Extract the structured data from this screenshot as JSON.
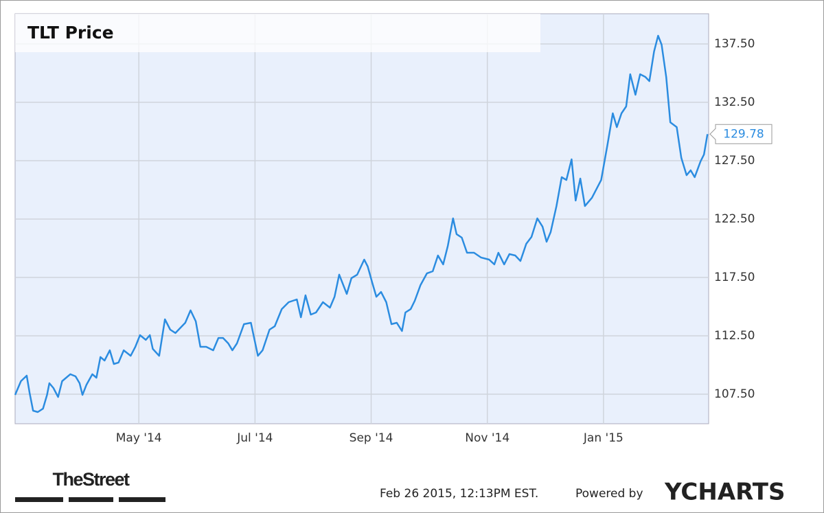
{
  "chart_data": {
    "type": "line",
    "title": "TLT Price",
    "color": "#2b8ce0",
    "grid": true,
    "x": [
      1.87,
      1.97,
      2.07,
      2.12,
      2.18,
      2.26,
      2.35,
      2.42,
      2.46,
      2.53,
      2.61,
      2.68,
      2.75,
      2.82,
      2.91,
      2.98,
      3.03,
      3.1,
      3.2,
      3.27,
      3.34,
      3.41,
      3.5,
      3.57,
      3.65,
      3.74,
      3.86,
      3.94,
      4.02,
      4.12,
      4.19,
      4.24,
      4.35,
      4.45,
      4.54,
      4.63,
      4.71,
      4.8,
      4.89,
      4.98,
      5.06,
      5.16,
      5.28,
      5.37,
      5.45,
      5.54,
      5.61,
      5.69,
      5.81,
      5.93,
      6.05,
      6.13,
      6.25,
      6.34,
      6.46,
      6.58,
      6.72,
      6.79,
      6.87,
      6.96,
      7.05,
      7.17,
      7.29,
      7.37,
      7.45,
      7.58,
      7.66,
      7.76,
      7.88,
      7.94,
      8.02,
      8.09,
      8.17,
      8.26,
      8.35,
      8.44,
      8.53,
      8.59,
      8.68,
      8.75,
      8.85,
      8.96,
      9.06,
      9.15,
      9.24,
      9.32,
      9.41,
      9.47,
      9.56,
      9.65,
      9.77,
      9.89,
      10.03,
      10.12,
      10.19,
      10.29,
      10.38,
      10.48,
      10.57,
      10.67,
      10.76,
      10.86,
      10.95,
      11.02,
      11.09,
      11.19,
      11.28,
      11.36,
      11.45,
      11.52,
      11.6,
      11.68,
      11.8,
      11.96,
      12.07,
      12.16,
      12.23,
      12.31,
      12.39,
      12.46,
      12.55,
      12.63,
      12.72,
      12.79,
      12.87,
      12.94,
      13.0,
      13.08,
      13.15,
      13.26,
      13.34,
      13.43,
      13.5,
      13.57,
      13.67,
      13.73,
      13.79
    ],
    "values": [
      107.44,
      108.62,
      109.09,
      107.62,
      106.09,
      105.97,
      106.26,
      107.44,
      108.44,
      108.03,
      107.26,
      108.62,
      108.91,
      109.21,
      109.03,
      108.44,
      107.44,
      108.32,
      109.21,
      108.91,
      110.68,
      110.38,
      111.26,
      110.09,
      110.21,
      111.26,
      110.79,
      111.56,
      112.56,
      112.15,
      112.56,
      111.38,
      110.79,
      113.91,
      113.03,
      112.74,
      113.15,
      113.62,
      114.68,
      113.74,
      111.56,
      111.56,
      111.26,
      112.32,
      112.32,
      111.85,
      111.26,
      111.85,
      113.5,
      113.62,
      110.79,
      111.26,
      113.03,
      113.32,
      114.79,
      115.38,
      115.62,
      114.09,
      115.97,
      114.32,
      114.5,
      115.38,
      114.91,
      115.85,
      117.74,
      116.09,
      117.44,
      117.74,
      119.03,
      118.44,
      117.03,
      115.85,
      116.26,
      115.38,
      113.5,
      113.62,
      112.91,
      114.5,
      114.79,
      115.5,
      116.85,
      117.85,
      118.03,
      119.38,
      118.62,
      120.21,
      122.56,
      121.21,
      120.91,
      119.62,
      119.62,
      119.21,
      119.03,
      118.62,
      119.62,
      118.62,
      119.5,
      119.38,
      118.91,
      120.38,
      120.97,
      122.56,
      121.85,
      120.56,
      121.38,
      123.62,
      126.09,
      125.85,
      127.62,
      124.09,
      125.97,
      123.62,
      124.32,
      125.85,
      128.91,
      131.56,
      130.38,
      131.56,
      132.15,
      134.91,
      133.15,
      134.91,
      134.68,
      134.32,
      136.85,
      138.21,
      137.44,
      134.68,
      130.79,
      130.38,
      127.74,
      126.26,
      126.68,
      126.09,
      127.44,
      128.03,
      129.78
    ],
    "xlim": [
      1.87,
      13.81
    ],
    "xticks": [
      {
        "value": 4,
        "label": "May '14"
      },
      {
        "value": 6,
        "label": "Jul '14"
      },
      {
        "value": 8,
        "label": "Sep '14"
      },
      {
        "value": 10,
        "label": "Nov '14"
      },
      {
        "value": 12,
        "label": "Jan '15"
      }
    ],
    "ylim": [
      104.97,
      140.09
    ],
    "yticks": [
      {
        "value": 107.5,
        "label": "107.50"
      },
      {
        "value": 112.5,
        "label": "112.50"
      },
      {
        "value": 117.5,
        "label": "117.50"
      },
      {
        "value": 122.5,
        "label": "122.50"
      },
      {
        "value": 127.5,
        "label": "127.50"
      },
      {
        "value": 132.5,
        "label": "132.50"
      },
      {
        "value": 137.5,
        "label": "137.50"
      }
    ],
    "source": "TheStreet",
    "timestamp": "Feb 26 2015, 12:13PM EST.",
    "powered_by": "Powered by",
    "brand": "YCHARTS"
  }
}
